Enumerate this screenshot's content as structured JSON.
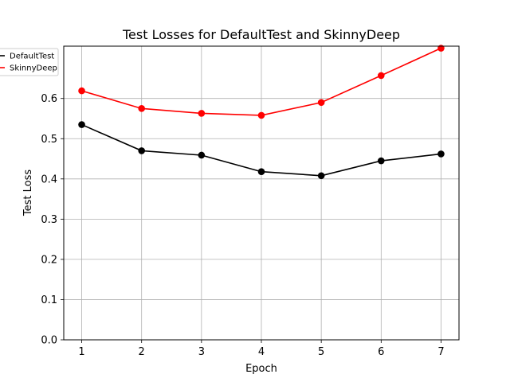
{
  "chart_data": {
    "type": "line",
    "title": "Test Losses for DefaultTest and SkinnyDeep",
    "xlabel": "Epoch",
    "ylabel": "Test Loss",
    "x": [
      1,
      2,
      3,
      4,
      5,
      6,
      7
    ],
    "xticks": [
      "1",
      "2",
      "3",
      "4",
      "5",
      "6",
      "7"
    ],
    "xlim": [
      0.7,
      7.3
    ],
    "ylim": [
      0.0,
      0.73
    ],
    "yticks": [
      "0.0",
      "0.1",
      "0.2",
      "0.3",
      "0.4",
      "0.5",
      "0.6"
    ],
    "grid": true,
    "legend_position": "top-left",
    "series": [
      {
        "name": "DefaultTest",
        "color": "#000000",
        "marker": "circle",
        "values": [
          0.535,
          0.47,
          0.459,
          0.418,
          0.408,
          0.445,
          0.462
        ]
      },
      {
        "name": "SkinnyDeep",
        "color": "#ff0000",
        "marker": "circle",
        "values": [
          0.619,
          0.575,
          0.563,
          0.558,
          0.59,
          0.657,
          0.725
        ]
      }
    ]
  }
}
